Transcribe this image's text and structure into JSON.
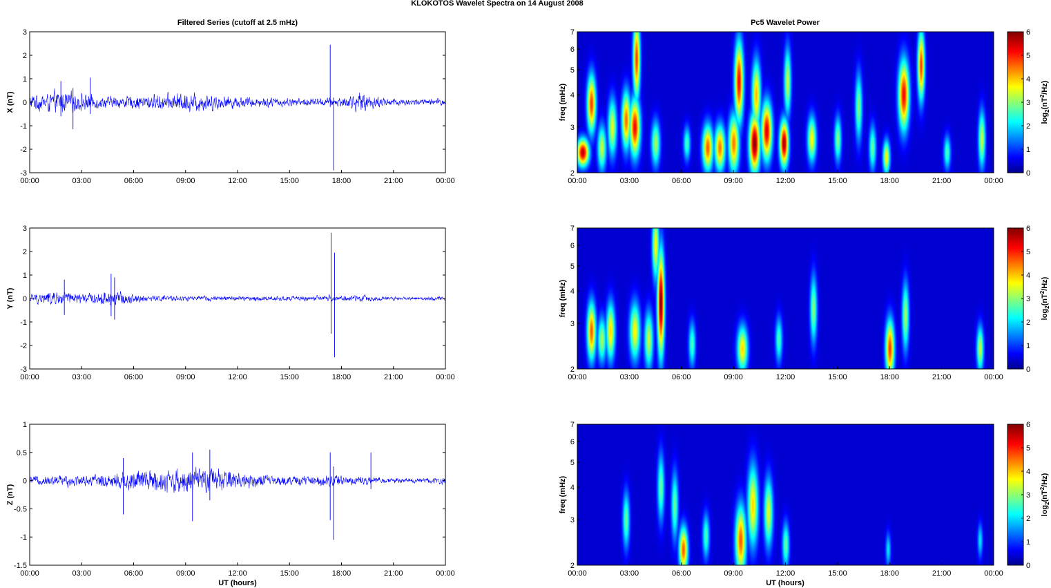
{
  "figure": {
    "title": "KLOKOTOS Wavelet Spectra on 14 August    2008",
    "left_column_title": "Filtered Series (cutoff at 2.5 mHz)",
    "right_column_title": "Pc5 Wavelet Power",
    "x_axis_label": "UT (hours)",
    "x_tick_labels": [
      "00:00",
      "03:00",
      "06:00",
      "09:00",
      "12:00",
      "15:00",
      "18:00",
      "21:00",
      "00:00"
    ],
    "freq_axis_label": "freq (mHz)",
    "freq_tick_labels": [
      "2",
      "3",
      "4",
      "5",
      "6",
      "7"
    ],
    "colorbar_label": "log2(nT2/Hz)",
    "colorbar_ticks": [
      "0",
      "1",
      "2",
      "3",
      "4",
      "5",
      "6"
    ],
    "colors": {
      "series_line": "#0000ff",
      "heatmap_background": "#00008f",
      "axes": "#000000"
    }
  },
  "chart_data": [
    {
      "type": "line",
      "panel": "X",
      "ylabel": "X (nT)",
      "xlim_hours": [
        0,
        24
      ],
      "ylim": [
        -3,
        3
      ],
      "yticks": [
        -3,
        -2,
        -1,
        0,
        1,
        2,
        3
      ],
      "ytick_labels": [
        "-3",
        "-2",
        "-1",
        "0",
        "1",
        "2",
        "3"
      ],
      "envelope": {
        "hours": [
          0,
          1,
          1.8,
          2.5,
          3.3,
          4,
          5,
          6,
          7,
          8,
          9,
          10,
          11,
          12,
          13,
          14,
          15,
          16,
          17,
          18,
          19,
          19.5,
          20,
          21,
          22,
          23,
          24
        ],
        "amplitude": [
          0.45,
          0.55,
          0.7,
          0.6,
          0.5,
          0.35,
          0.35,
          0.4,
          0.45,
          0.5,
          0.6,
          0.55,
          0.45,
          0.35,
          0.3,
          0.3,
          0.25,
          0.25,
          0.25,
          0.3,
          0.55,
          0.5,
          0.35,
          0.25,
          0.2,
          0.2,
          0.25
        ]
      },
      "spikes": [
        {
          "hour": 1.8,
          "min": -0.6,
          "max": 0.9
        },
        {
          "hour": 2.5,
          "min": -1.15,
          "max": 0.6
        },
        {
          "hour": 3.5,
          "min": -0.5,
          "max": 1.05
        },
        {
          "hour": 17.35,
          "min": -0.2,
          "max": 2.45
        },
        {
          "hour": 17.55,
          "min": -2.9,
          "max": 0.2
        }
      ]
    },
    {
      "type": "line",
      "panel": "Y",
      "ylabel": "Y (nT)",
      "xlim_hours": [
        0,
        24
      ],
      "ylim": [
        -3,
        3
      ],
      "yticks": [
        -3,
        -2,
        -1,
        0,
        1,
        2,
        3
      ],
      "ytick_labels": [
        "-3",
        "-2",
        "-1",
        "0",
        "1",
        "2",
        "3"
      ],
      "envelope": {
        "hours": [
          0,
          1,
          2,
          3,
          4,
          4.7,
          5.5,
          6.5,
          8,
          10,
          12,
          14,
          16,
          17.5,
          19,
          21,
          22,
          24
        ],
        "amplitude": [
          0.25,
          0.4,
          0.45,
          0.3,
          0.35,
          0.55,
          0.35,
          0.22,
          0.18,
          0.15,
          0.15,
          0.15,
          0.15,
          0.18,
          0.2,
          0.12,
          0.1,
          0.15
        ]
      },
      "spikes": [
        {
          "hour": 2.0,
          "min": -0.7,
          "max": 0.8
        },
        {
          "hour": 4.7,
          "min": -0.75,
          "max": 1.05
        },
        {
          "hour": 4.9,
          "min": -0.9,
          "max": 0.9
        },
        {
          "hour": 17.4,
          "min": -1.5,
          "max": 2.8
        },
        {
          "hour": 17.6,
          "min": -2.5,
          "max": 1.95
        }
      ]
    },
    {
      "type": "line",
      "panel": "Z",
      "ylabel": "Z (nT)",
      "xlim_hours": [
        0,
        24
      ],
      "ylim": [
        -1.5,
        1
      ],
      "yticks": [
        -1.5,
        -1,
        -0.5,
        0,
        0.5,
        1
      ],
      "ytick_labels": [
        "-1.5",
        "-1",
        "-0.5",
        "0",
        "0.5",
        "1"
      ],
      "envelope": {
        "hours": [
          0,
          1,
          2,
          3,
          4,
          5,
          6,
          7,
          8,
          9,
          10,
          11,
          12,
          13,
          14,
          15,
          16,
          17,
          18,
          19,
          20,
          21,
          22,
          23,
          24
        ],
        "amplitude": [
          0.1,
          0.12,
          0.15,
          0.13,
          0.15,
          0.22,
          0.28,
          0.28,
          0.3,
          0.32,
          0.3,
          0.3,
          0.22,
          0.18,
          0.12,
          0.12,
          0.12,
          0.15,
          0.15,
          0.1,
          0.08,
          0.07,
          0.06,
          0.07,
          0.1
        ]
      },
      "spikes": [
        {
          "hour": 5.4,
          "min": -0.6,
          "max": 0.4
        },
        {
          "hour": 9.4,
          "min": -0.72,
          "max": 0.5
        },
        {
          "hour": 10.4,
          "min": -0.35,
          "max": 0.55
        },
        {
          "hour": 17.35,
          "min": -0.7,
          "max": 0.5
        },
        {
          "hour": 17.55,
          "min": -1.05,
          "max": 0.25
        },
        {
          "hour": 19.7,
          "min": -0.15,
          "max": 0.5
        }
      ]
    },
    {
      "type": "heatmap",
      "panel": "X",
      "xlim_hours": [
        0,
        24
      ],
      "ylim_mHz": [
        2,
        7
      ],
      "y_scale": "log",
      "clim": [
        0,
        6
      ],
      "colormap": "jet",
      "blobs": [
        {
          "hour": 0.3,
          "freq": 2.4,
          "hw": 0.35,
          "hf": 0.12,
          "power": 5.6
        },
        {
          "hour": 0.8,
          "freq": 3.7,
          "hw": 0.25,
          "hf": 0.25,
          "power": 4.8
        },
        {
          "hour": 1.4,
          "freq": 2.5,
          "hw": 0.25,
          "hf": 0.2,
          "power": 3.2
        },
        {
          "hour": 2.0,
          "freq": 3.0,
          "hw": 0.25,
          "hf": 0.25,
          "power": 3.4
        },
        {
          "hour": 2.8,
          "freq": 3.2,
          "hw": 0.25,
          "hf": 0.25,
          "power": 4.5
        },
        {
          "hour": 3.3,
          "freq": 3.0,
          "hw": 0.3,
          "hf": 0.25,
          "power": 5.2
        },
        {
          "hour": 3.4,
          "freq": 5.5,
          "hw": 0.2,
          "hf": 0.35,
          "power": 4.8
        },
        {
          "hour": 4.5,
          "freq": 2.6,
          "hw": 0.25,
          "hf": 0.2,
          "power": 3.0
        },
        {
          "hour": 6.3,
          "freq": 2.6,
          "hw": 0.2,
          "hf": 0.15,
          "power": 2.4
        },
        {
          "hour": 7.5,
          "freq": 2.5,
          "hw": 0.3,
          "hf": 0.2,
          "power": 4.6
        },
        {
          "hour": 8.2,
          "freq": 2.5,
          "hw": 0.3,
          "hf": 0.2,
          "power": 4.4
        },
        {
          "hour": 9.0,
          "freq": 2.6,
          "hw": 0.3,
          "hf": 0.25,
          "power": 4.4
        },
        {
          "hour": 9.3,
          "freq": 4.5,
          "hw": 0.25,
          "hf": 0.35,
          "power": 5.2
        },
        {
          "hour": 10.2,
          "freq": 2.6,
          "hw": 0.3,
          "hf": 0.25,
          "power": 6.0
        },
        {
          "hour": 10.3,
          "freq": 4.0,
          "hw": 0.25,
          "hf": 0.3,
          "power": 4.0
        },
        {
          "hour": 10.9,
          "freq": 2.9,
          "hw": 0.3,
          "hf": 0.25,
          "power": 5.4
        },
        {
          "hour": 11.9,
          "freq": 2.6,
          "hw": 0.25,
          "hf": 0.2,
          "power": 5.8
        },
        {
          "hour": 12.1,
          "freq": 4.5,
          "hw": 0.2,
          "hf": 0.3,
          "power": 3.2
        },
        {
          "hour": 13.5,
          "freq": 2.7,
          "hw": 0.25,
          "hf": 0.2,
          "power": 3.6
        },
        {
          "hour": 15.0,
          "freq": 2.7,
          "hw": 0.2,
          "hf": 0.2,
          "power": 2.8
        },
        {
          "hour": 16.2,
          "freq": 3.6,
          "hw": 0.2,
          "hf": 0.3,
          "power": 2.8
        },
        {
          "hour": 17.0,
          "freq": 2.5,
          "hw": 0.2,
          "hf": 0.2,
          "power": 2.6
        },
        {
          "hour": 17.8,
          "freq": 2.3,
          "hw": 0.2,
          "hf": 0.15,
          "power": 3.6
        },
        {
          "hour": 18.8,
          "freq": 4.0,
          "hw": 0.3,
          "hf": 0.3,
          "power": 5.2
        },
        {
          "hour": 19.8,
          "freq": 5.2,
          "hw": 0.2,
          "hf": 0.3,
          "power": 4.8
        },
        {
          "hour": 21.3,
          "freq": 2.4,
          "hw": 0.2,
          "hf": 0.15,
          "power": 2.4
        },
        {
          "hour": 23.3,
          "freq": 2.7,
          "hw": 0.2,
          "hf": 0.25,
          "power": 3.2
        }
      ]
    },
    {
      "type": "heatmap",
      "panel": "Y",
      "xlim_hours": [
        0,
        24
      ],
      "ylim_mHz": [
        2,
        7
      ],
      "y_scale": "log",
      "clim": [
        0,
        6
      ],
      "colormap": "jet",
      "blobs": [
        {
          "hour": 0.8,
          "freq": 2.8,
          "hw": 0.25,
          "hf": 0.25,
          "power": 4.6
        },
        {
          "hour": 1.4,
          "freq": 2.6,
          "hw": 0.25,
          "hf": 0.2,
          "power": 3.0
        },
        {
          "hour": 1.9,
          "freq": 2.8,
          "hw": 0.25,
          "hf": 0.25,
          "power": 3.8
        },
        {
          "hour": 3.3,
          "freq": 2.8,
          "hw": 0.3,
          "hf": 0.25,
          "power": 3.6
        },
        {
          "hour": 4.1,
          "freq": 2.6,
          "hw": 0.25,
          "hf": 0.25,
          "power": 3.2
        },
        {
          "hour": 4.8,
          "freq": 3.6,
          "hw": 0.2,
          "hf": 0.45,
          "power": 6.0
        },
        {
          "hour": 4.5,
          "freq": 6.0,
          "hw": 0.2,
          "hf": 0.3,
          "power": 3.6
        },
        {
          "hour": 6.6,
          "freq": 2.5,
          "hw": 0.2,
          "hf": 0.2,
          "power": 2.4
        },
        {
          "hour": 9.5,
          "freq": 2.4,
          "hw": 0.3,
          "hf": 0.2,
          "power": 3.8
        },
        {
          "hour": 11.6,
          "freq": 2.6,
          "hw": 0.2,
          "hf": 0.2,
          "power": 2.4
        },
        {
          "hour": 13.6,
          "freq": 3.4,
          "hw": 0.2,
          "hf": 0.3,
          "power": 2.8
        },
        {
          "hour": 18.0,
          "freq": 2.4,
          "hw": 0.25,
          "hf": 0.25,
          "power": 4.8
        },
        {
          "hour": 18.9,
          "freq": 3.2,
          "hw": 0.2,
          "hf": 0.3,
          "power": 3.0
        },
        {
          "hour": 23.2,
          "freq": 2.4,
          "hw": 0.2,
          "hf": 0.2,
          "power": 3.2
        }
      ]
    },
    {
      "type": "heatmap",
      "panel": "Z",
      "xlim_hours": [
        0,
        24
      ],
      "ylim_mHz": [
        2,
        7
      ],
      "y_scale": "log",
      "clim": [
        0,
        6
      ],
      "colormap": "jet",
      "blobs": [
        {
          "hour": 2.8,
          "freq": 3.0,
          "hw": 0.2,
          "hf": 0.25,
          "power": 2.6
        },
        {
          "hour": 4.8,
          "freq": 4.0,
          "hw": 0.2,
          "hf": 0.3,
          "power": 2.6
        },
        {
          "hour": 6.1,
          "freq": 2.3,
          "hw": 0.25,
          "hf": 0.2,
          "power": 4.6
        },
        {
          "hour": 5.6,
          "freq": 3.4,
          "hw": 0.2,
          "hf": 0.3,
          "power": 2.6
        },
        {
          "hour": 7.4,
          "freq": 2.6,
          "hw": 0.2,
          "hf": 0.2,
          "power": 2.4
        },
        {
          "hour": 9.4,
          "freq": 2.5,
          "hw": 0.3,
          "hf": 0.3,
          "power": 4.6
        },
        {
          "hour": 10.1,
          "freq": 3.4,
          "hw": 0.3,
          "hf": 0.35,
          "power": 3.8
        },
        {
          "hour": 11.0,
          "freq": 3.2,
          "hw": 0.25,
          "hf": 0.3,
          "power": 3.4
        },
        {
          "hour": 12.0,
          "freq": 2.4,
          "hw": 0.2,
          "hf": 0.2,
          "power": 2.6
        },
        {
          "hour": 17.9,
          "freq": 2.3,
          "hw": 0.15,
          "hf": 0.15,
          "power": 1.8
        },
        {
          "hour": 23.2,
          "freq": 2.5,
          "hw": 0.15,
          "hf": 0.15,
          "power": 1.8
        }
      ]
    }
  ]
}
